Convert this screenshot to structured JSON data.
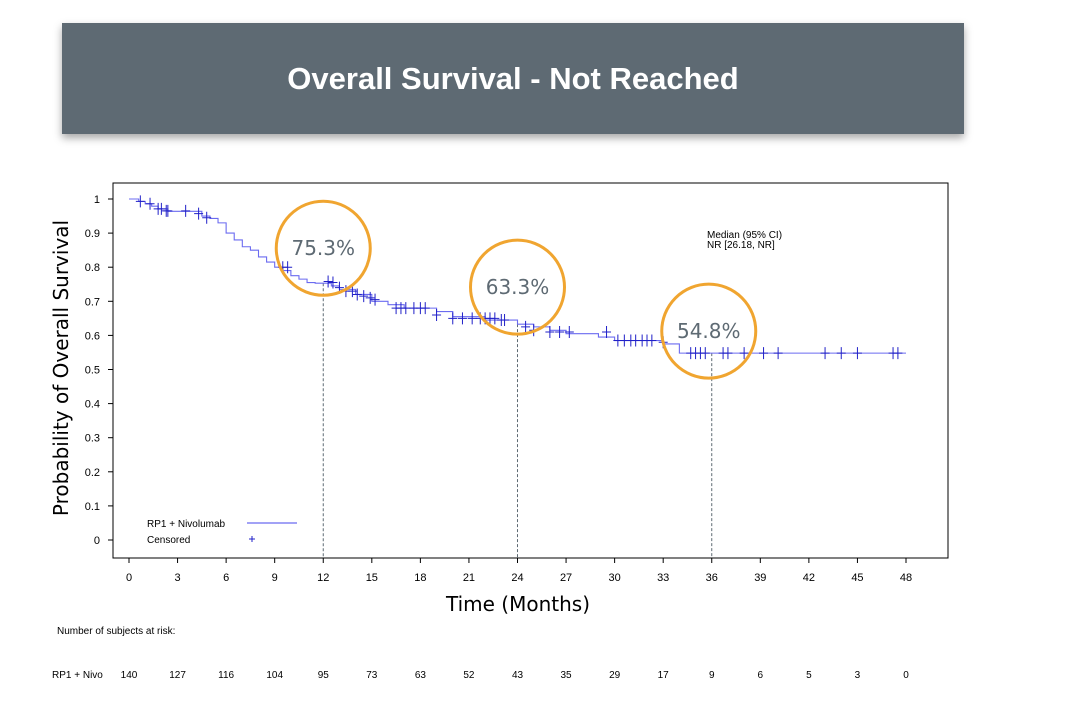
{
  "banner": {
    "title": "Overall Survival - Not Reached"
  },
  "chart_data": {
    "type": "line",
    "ylabel": "Probability of Overall Survival",
    "xlabel": "Time (Months)",
    "xlim": [
      0,
      48
    ],
    "ylim": [
      0,
      1
    ],
    "x_ticks": [
      0,
      3,
      6,
      9,
      12,
      15,
      18,
      21,
      24,
      27,
      30,
      33,
      36,
      39,
      42,
      45,
      48
    ],
    "y_ticks": [
      0,
      0.1,
      0.2,
      0.3,
      0.4,
      0.5,
      0.6,
      0.7,
      0.8,
      0.9,
      1
    ],
    "y_tick_labels": [
      "0",
      "0.1",
      "0.2",
      "0.3",
      "0.4",
      "0.5",
      "0.6",
      "0.7",
      "0.8",
      "0.9",
      "1"
    ],
    "grid": false,
    "line_color": "#6b6bf0",
    "censor_color": "#2020c8",
    "series": [
      {
        "name": "RP1 + Nivolumab",
        "x": [
          0,
          0.6,
          1.0,
          1.4,
          1.8,
          2.4,
          4.5,
          5.0,
          5.5,
          6.0,
          6.5,
          7.0,
          7.5,
          8.0,
          8.5,
          9.0,
          9.5,
          10.0,
          10.5,
          11.0,
          11.5,
          12.0,
          12.5,
          13.0,
          14.0,
          15.0,
          16.0,
          17.0,
          19.0,
          20.0,
          22.0,
          24.0,
          25.0,
          26.0,
          27.0,
          29.0,
          30.0,
          33.0,
          34.0,
          48.0
        ],
        "y": [
          1.0,
          0.993,
          0.986,
          0.979,
          0.971,
          0.964,
          0.95,
          0.943,
          0.93,
          0.9,
          0.88,
          0.86,
          0.85,
          0.83,
          0.815,
          0.8,
          0.79,
          0.775,
          0.765,
          0.755,
          0.753,
          0.753,
          0.745,
          0.735,
          0.72,
          0.7,
          0.69,
          0.68,
          0.67,
          0.655,
          0.645,
          0.633,
          0.625,
          0.615,
          0.605,
          0.595,
          0.585,
          0.575,
          0.548,
          0.548
        ]
      }
    ],
    "censored": {
      "name": "Censored",
      "x": [
        0.7,
        1.3,
        1.8,
        2.0,
        2.3,
        2.4,
        3.5,
        4.3,
        4.8,
        9.5,
        9.8,
        12.3,
        12.6,
        13.0,
        13.4,
        13.8,
        14.1,
        14.5,
        14.9,
        15.2,
        16.5,
        16.8,
        17.1,
        17.6,
        18.0,
        18.3,
        19.0,
        20.0,
        20.6,
        21.2,
        21.7,
        22.0,
        22.3,
        22.6,
        23.0,
        23.2,
        24.5,
        25.0,
        26.0,
        26.6,
        27.2,
        29.5,
        30.2,
        30.6,
        31.0,
        31.3,
        31.7,
        32.0,
        32.3,
        33.0,
        34.7,
        35.0,
        35.3,
        35.6,
        36.7,
        37.0,
        38.0,
        39.2,
        40.1,
        43.0,
        44.0,
        45.0,
        47.2,
        47.5
      ],
      "y": [
        0.993,
        0.986,
        0.971,
        0.971,
        0.965,
        0.965,
        0.965,
        0.957,
        0.945,
        0.8,
        0.8,
        0.758,
        0.755,
        0.74,
        0.73,
        0.73,
        0.72,
        0.715,
        0.71,
        0.705,
        0.68,
        0.68,
        0.68,
        0.68,
        0.68,
        0.68,
        0.66,
        0.65,
        0.65,
        0.65,
        0.65,
        0.65,
        0.65,
        0.65,
        0.645,
        0.645,
        0.625,
        0.615,
        0.61,
        0.61,
        0.61,
        0.61,
        0.585,
        0.585,
        0.585,
        0.585,
        0.585,
        0.585,
        0.585,
        0.58,
        0.548,
        0.548,
        0.548,
        0.548,
        0.548,
        0.548,
        0.548,
        0.548,
        0.548,
        0.548,
        0.548,
        0.548,
        0.548,
        0.548
      ]
    },
    "annotations": [
      {
        "label": "75.3%",
        "time": 12,
        "value": 0.753
      },
      {
        "label": "63.3%",
        "time": 24,
        "value": 0.633
      },
      {
        "label": "54.8%",
        "time": 36,
        "value": 0.548
      }
    ],
    "annotation_color": "#f0a530",
    "median_text": [
      "Median (95% CI)",
      "NR [26.18, NR]"
    ],
    "legend": {
      "placement": "bottom-left",
      "entries": [
        {
          "label": "RP1 + Nivolumab",
          "marker": "line"
        },
        {
          "label": "Censored",
          "marker": "plus"
        }
      ]
    },
    "risk_table": {
      "title": "Number of subjects at risk:",
      "rows": [
        {
          "label": "RP1 + Nivo",
          "values": [
            "140",
            "127",
            "116",
            "104",
            "95",
            "73",
            "63",
            "52",
            "43",
            "35",
            "29",
            "17",
            "9",
            "6",
            "5",
            "3",
            "0"
          ]
        }
      ]
    }
  }
}
